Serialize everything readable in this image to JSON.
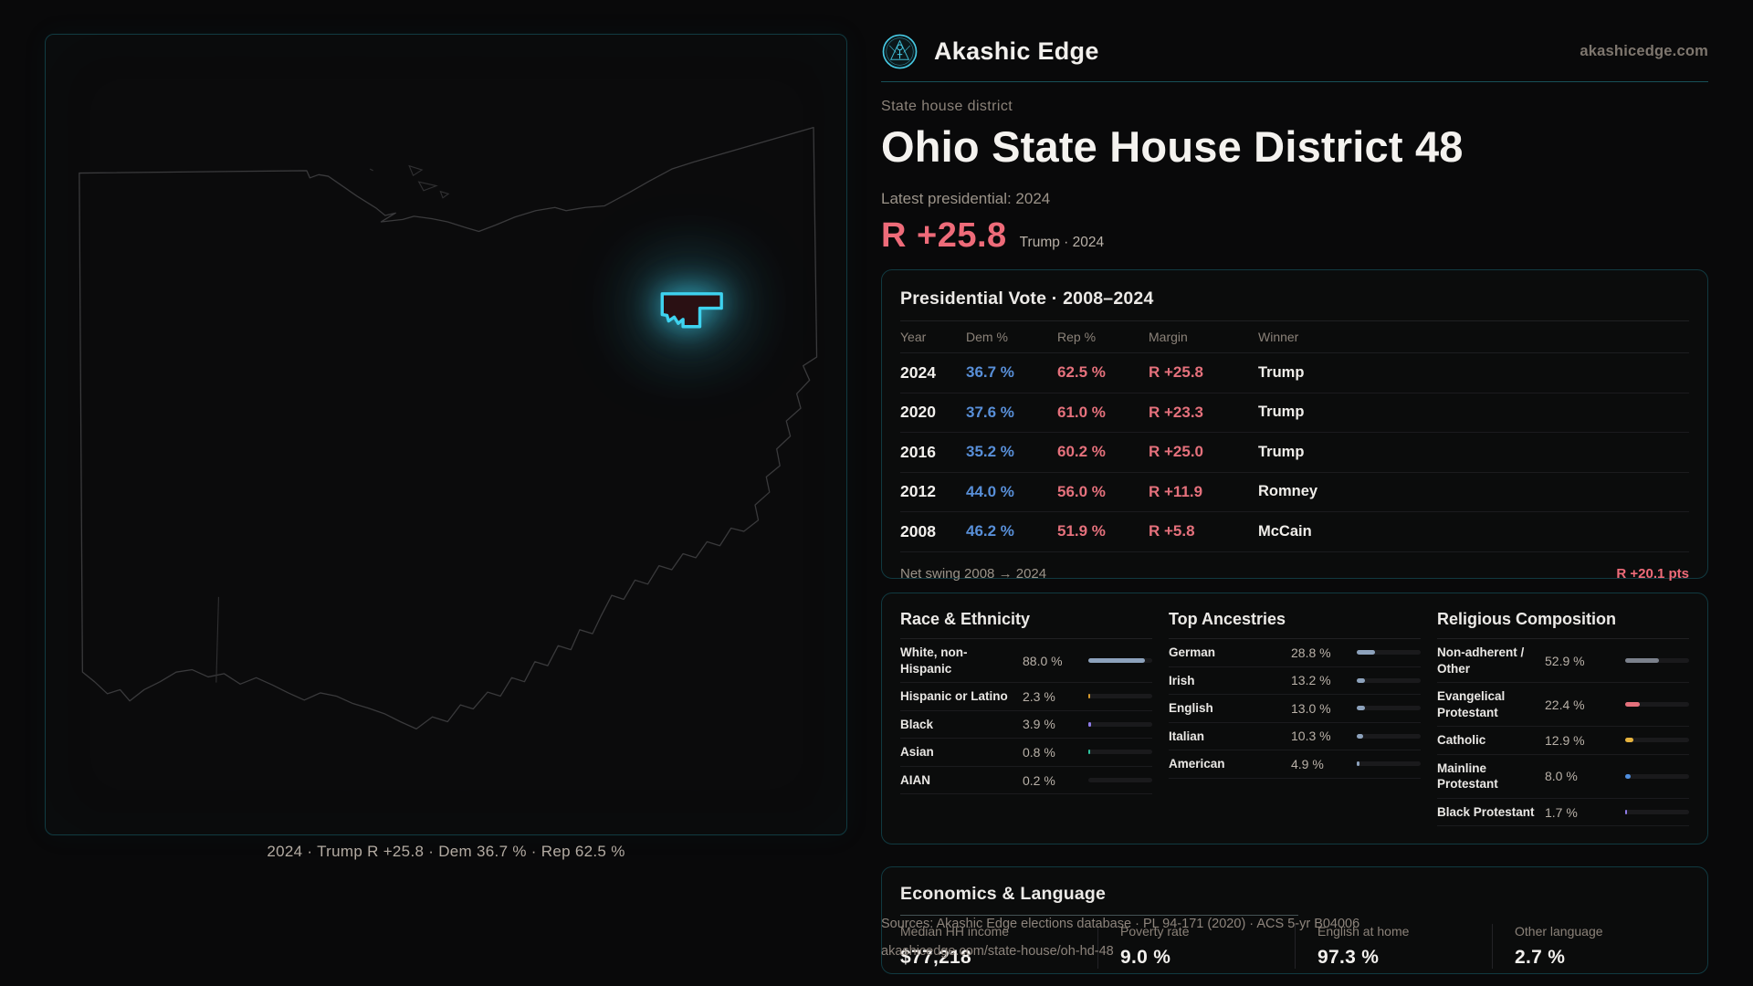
{
  "brand": {
    "name": "Akashic Edge",
    "url": "akashicedge.com",
    "logo_icon": "akashic-edge-emblem"
  },
  "page": {
    "eyebrow": "State house district",
    "title": "Ohio State House District 48",
    "latest_label": "Latest presidential: 2024",
    "hero_margin": "R +25.8",
    "hero_sub": "Trump · 2024"
  },
  "map": {
    "caption": "2024 · Trump R +25.8 · Dem 36.7 % · Rep 62.5 %"
  },
  "pres_table": {
    "title": "Presidential Vote · 2008–2024",
    "columns": [
      "Year",
      "Dem %",
      "Rep %",
      "Margin",
      "Winner"
    ],
    "rows": [
      {
        "year": "2024",
        "dem": "36.7 %",
        "rep": "62.5 %",
        "margin": "R +25.8",
        "winner": "Trump"
      },
      {
        "year": "2020",
        "dem": "37.6 %",
        "rep": "61.0 %",
        "margin": "R +23.3",
        "winner": "Trump"
      },
      {
        "year": "2016",
        "dem": "35.2 %",
        "rep": "60.2 %",
        "margin": "R +25.0",
        "winner": "Trump"
      },
      {
        "year": "2012",
        "dem": "44.0 %",
        "rep": "56.0 %",
        "margin": "R +11.9",
        "winner": "Romney"
      },
      {
        "year": "2008",
        "dem": "46.2 %",
        "rep": "51.9 %",
        "margin": "R +5.8",
        "winner": "McCain"
      }
    ],
    "net_swing_label": "Net swing 2008 → 2024",
    "net_swing_value": "R +20.1 pts"
  },
  "demographics": {
    "race": {
      "title": "Race & Ethnicity",
      "rows": [
        {
          "label": "White, non-Hispanic",
          "pct": "88.0 %",
          "value": 88.0,
          "color": "#8da2bc"
        },
        {
          "label": "Hispanic or Latino",
          "pct": "2.3 %",
          "value": 2.3,
          "color": "#d69a2d"
        },
        {
          "label": "Black",
          "pct": "3.9 %",
          "value": 3.9,
          "color": "#8f7ce8"
        },
        {
          "label": "Asian",
          "pct": "0.8 %",
          "value": 0.8,
          "color": "#2ec4a0"
        },
        {
          "label": "AIAN",
          "pct": "0.2 %",
          "value": 0.2,
          "color": "#6a6f78"
        }
      ]
    },
    "ancestries": {
      "title": "Top Ancestries",
      "rows": [
        {
          "label": "German",
          "pct": "28.8 %",
          "value": 28.8,
          "color": "#8da2bc"
        },
        {
          "label": "Irish",
          "pct": "13.2 %",
          "value": 13.2,
          "color": "#8da2bc"
        },
        {
          "label": "English",
          "pct": "13.0 %",
          "value": 13.0,
          "color": "#8da2bc"
        },
        {
          "label": "Italian",
          "pct": "10.3 %",
          "value": 10.3,
          "color": "#8da2bc"
        },
        {
          "label": "American",
          "pct": "4.9 %",
          "value": 4.9,
          "color": "#8da2bc"
        }
      ]
    },
    "religion": {
      "title": "Religious Composition",
      "rows": [
        {
          "label": "Non-adherent / Other",
          "pct": "52.9 %",
          "value": 52.9,
          "color": "#7b818c"
        },
        {
          "label": "Evangelical Protestant",
          "pct": "22.4 %",
          "value": 22.4,
          "color": "#e5717c"
        },
        {
          "label": "Catholic",
          "pct": "12.9 %",
          "value": 12.9,
          "color": "#e6b33e"
        },
        {
          "label": "Mainline Protestant",
          "pct": "8.0 %",
          "value": 8.0,
          "color": "#4f8ede"
        },
        {
          "label": "Black Protestant",
          "pct": "1.7 %",
          "value": 1.7,
          "color": "#8f7ce8"
        }
      ]
    }
  },
  "economics": {
    "title": "Economics & Language",
    "stats": [
      {
        "label": "Median HH income",
        "value": "$77,218"
      },
      {
        "label": "Poverty rate",
        "value": "9.0 %"
      },
      {
        "label": "English at home",
        "value": "97.3 %"
      },
      {
        "label": "Other language",
        "value": "2.7 %"
      }
    ]
  },
  "footer": {
    "sources_line1": "Sources: Akashic Edge elections database · PL 94-171 (2020) · ACS 5-yr B04006",
    "sources_line2": "akashicedge.com/state-house/oh-hd-48"
  },
  "colors": {
    "accent_red": "#ee6b79",
    "dem_blue": "#588fd8",
    "rep_red": "#e5717c",
    "brand_cyan": "#3ed2ef",
    "background": "#09090a",
    "panel_border": "#113a41"
  }
}
